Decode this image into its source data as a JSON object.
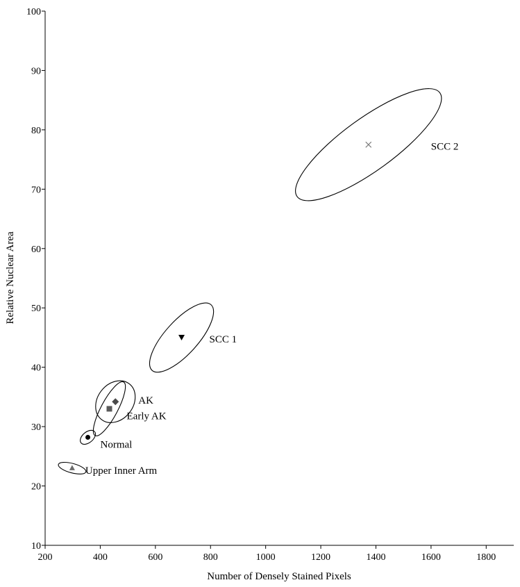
{
  "chart_data": {
    "type": "scatter",
    "xlabel": "Number of Densely Stained Pixels",
    "ylabel": "Relative Nuclear Area",
    "xlim": [
      200,
      1900
    ],
    "ylim": [
      10,
      100
    ],
    "xticks": [
      200,
      400,
      600,
      800,
      1000,
      1200,
      1400,
      1600,
      1800
    ],
    "yticks": [
      10,
      20,
      30,
      40,
      50,
      60,
      70,
      80,
      90,
      100
    ],
    "grid": false,
    "series": [
      {
        "name": "Upper Inner Arm",
        "marker": "triangle-up",
        "color": "#6b6b6b",
        "x": 298,
        "y": 23,
        "ellipse": {
          "rx_data": 17,
          "ry_data": 2.4,
          "angle_deg": 75
        }
      },
      {
        "name": "Normal",
        "marker": "circle",
        "color": "#000000",
        "x": 355,
        "y": 28.2,
        "ellipse": {
          "rx_data": 32,
          "ry_data": 0.9,
          "angle_deg": 40
        }
      },
      {
        "name": "Early AK",
        "marker": "square",
        "color": "#5a5a5a",
        "x": 433,
        "y": 33,
        "ellipse": {
          "rx_data": 110,
          "ry_data": 1.4,
          "angle_deg": 62
        }
      },
      {
        "name": "AK",
        "marker": "diamond",
        "color": "#4a4a4a",
        "x": 455,
        "y": 34.2,
        "ellipse": {
          "rx_data": 82,
          "ry_data": 3.0,
          "angle_deg": 52
        }
      },
      {
        "name": "SCC 1",
        "marker": "triangle-down",
        "color": "#000000",
        "x": 695,
        "y": 45,
        "ellipse": {
          "rx_data": 160,
          "ry_data": 2.8,
          "angle_deg": 48
        }
      },
      {
        "name": "SCC 2",
        "marker": "x",
        "color": "#777777",
        "x": 1373,
        "y": 77.5,
        "ellipse": {
          "rx_data": 320,
          "ry_data": 4.4,
          "angle_deg": 36
        }
      }
    ]
  }
}
